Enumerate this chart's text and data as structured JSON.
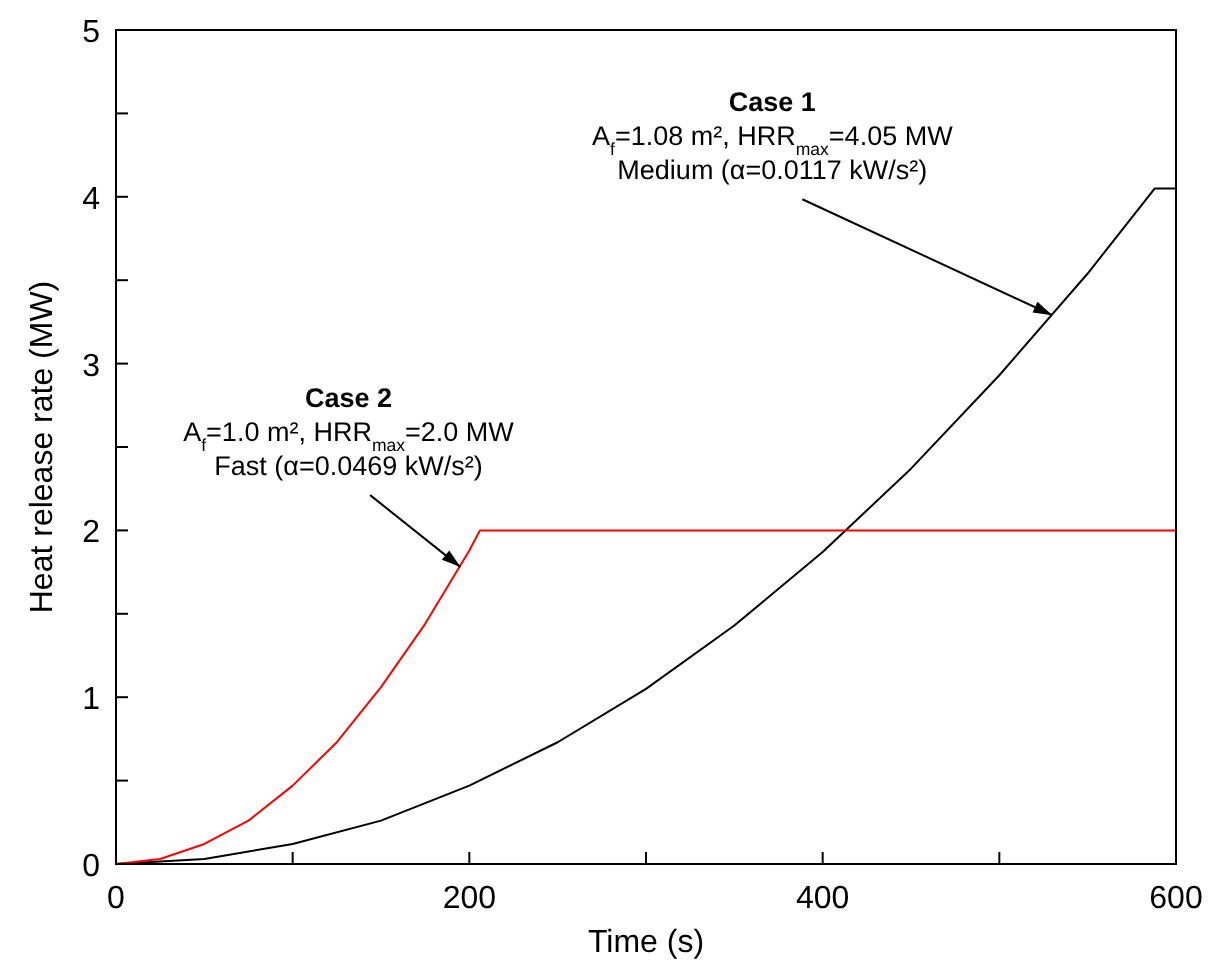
{
  "chart_data": {
    "type": "line",
    "xlabel": "Time (s)",
    "ylabel": "Heat release rate (MW)",
    "xlim": [
      0,
      600
    ],
    "ylim": [
      0,
      5
    ],
    "xticks": [
      0,
      {
        "value": 100,
        "label": null
      },
      200,
      {
        "value": 300,
        "label": null
      },
      400,
      {
        "value": 500,
        "label": null
      },
      600
    ],
    "yticks": [
      0,
      {
        "value": 0.5,
        "label": null
      },
      1,
      {
        "value": 1.5,
        "label": null
      },
      2,
      {
        "value": 2.5,
        "label": null
      },
      3,
      {
        "value": 3.5,
        "label": null
      },
      4,
      {
        "value": 4.5,
        "label": null
      },
      5
    ],
    "grid": false,
    "marker": "none",
    "line_style": "solid",
    "series": [
      {
        "color": "#000000",
        "x": [
          0,
          50,
          100,
          150,
          200,
          250,
          300,
          350,
          400,
          450,
          500,
          550,
          588,
          600
        ],
        "values": [
          0,
          0.03,
          0.12,
          0.26,
          0.47,
          0.73,
          1.05,
          1.43,
          1.87,
          2.37,
          2.93,
          3.54,
          4.05,
          4.05
        ]
      },
      {
        "color": "#ff0000",
        "x": [
          0,
          25,
          50,
          75,
          100,
          125,
          150,
          175,
          200,
          206,
          600
        ],
        "values": [
          0,
          0.03,
          0.12,
          0.26,
          0.47,
          0.73,
          1.06,
          1.44,
          1.88,
          2.0,
          2.0
        ]
      }
    ],
    "annotations": [
      "Case 1",
      "A$_{f}$=1.08 m², HRR$_{max}$=4.05 MW",
      {
        "text": "Medium (α=0.0117 kW/s²)",
        "x": 530,
        "y": 3.29
      },
      "Case 2",
      "A$_{f}$=1.0 m², HRR$_{max}$=2.0 MW",
      {
        "text": "Fast (α=0.0469 kW/s²)",
        "x": 195,
        "y": 1.78
      }
    ]
  }
}
